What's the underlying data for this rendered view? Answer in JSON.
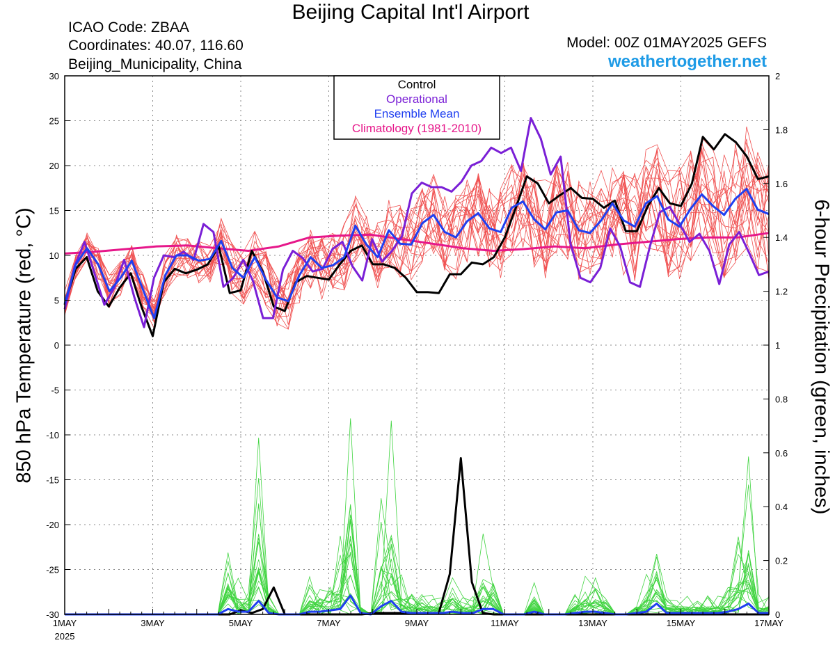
{
  "header": {
    "title": "Beijing Capital Int'l Airport",
    "icao": "ICAO Code: ZBAA",
    "coords": "Coordinates: 40.07, 116.60",
    "region": "Beijing_Municipality, China",
    "model": "Model: 00Z 01MAY2025 GEFS",
    "site": "weathertogether.net"
  },
  "colors": {
    "members": "#f05050",
    "precip_members": "#3fd43f",
    "control": "#000000",
    "operational": "#7a1fd6",
    "mean": "#1f3ff0",
    "climatology": "#e6178a"
  },
  "chart_data": {
    "type": "line",
    "title": "Beijing Capital Int'l Airport",
    "ylabel": "850 hPa Temperature (red, °C)",
    "y2label": "6-hour Precipitation (green, inches)",
    "ylim": [
      -30,
      30
    ],
    "y2lim": [
      0,
      2
    ],
    "xlim_days": [
      0,
      16
    ],
    "x_ticks": [
      {
        "day": 0,
        "label": "1MAY"
      },
      {
        "day": 2,
        "label": "3MAY"
      },
      {
        "day": 4,
        "label": "5MAY"
      },
      {
        "day": 6,
        "label": "7MAY"
      },
      {
        "day": 8,
        "label": "9MAY"
      },
      {
        "day": 10,
        "label": "11MAY"
      },
      {
        "day": 12,
        "label": "13MAY"
      },
      {
        "day": 14,
        "label": "15MAY"
      },
      {
        "day": 16,
        "label": "17MAY"
      }
    ],
    "x_year_label": "2025",
    "y_ticks": [
      30,
      25,
      20,
      15,
      10,
      5,
      0,
      -5,
      -10,
      -15,
      -20,
      -25,
      -30
    ],
    "y2_ticks": [
      "2",
      "1.8",
      "1.6",
      "1.4",
      "1.2",
      "1",
      "0.8",
      "0.6",
      "0.4",
      "0.2",
      "0"
    ],
    "grid": "dotted",
    "legend": {
      "position": "top-center",
      "items": [
        {
          "label": "Control",
          "color": "#000000"
        },
        {
          "label": "Operational",
          "color": "#7a1fd6"
        },
        {
          "label": "Ensemble Mean",
          "color": "#1f3ff0"
        },
        {
          "label": "Climatology (1981-2010)",
          "color": "#e6178a"
        }
      ]
    },
    "series": [
      {
        "name": "Control",
        "axis": "temp",
        "values": [
          4.5,
          8.5,
          9.8,
          6,
          4.3,
          6.4,
          8,
          4.2,
          1,
          7,
          8.5,
          8,
          8.4,
          9,
          11,
          5.8,
          6.1,
          10.5,
          8.2,
          4.3,
          3.8,
          7,
          7.7,
          7.5,
          7.3,
          9,
          10.5,
          11.1,
          9,
          9,
          8.6,
          7.5,
          5.9,
          5.9,
          5.8,
          7.9,
          7.9,
          9.2,
          9,
          9.8,
          12,
          15.3,
          18.8,
          18,
          15.8,
          16.7,
          17.5,
          16.4,
          16.3,
          15.3,
          16.1,
          12.7,
          12.7,
          15.5,
          17.5,
          15.8,
          15.5,
          18,
          23.2,
          21.8,
          23.5,
          22.6,
          21,
          18.5,
          18.8
        ]
      },
      {
        "name": "Operational",
        "axis": "temp",
        "values": [
          4,
          8.8,
          11.5,
          8,
          4.5,
          6.4,
          9.5,
          5.4,
          2,
          7.5,
          10,
          9.8,
          10.4,
          9.5,
          13.5,
          12.6,
          6.5,
          7.5,
          9.5,
          7.1,
          3,
          3,
          8.4,
          10.5,
          9.7,
          8.2,
          8.5,
          10.7,
          11.5,
          8.8,
          7.2,
          11.8,
          9.3,
          10.5,
          12.1,
          16.9,
          18.1,
          17.6,
          17.6,
          17.1,
          18.2,
          20,
          20.5,
          22,
          21.4,
          22,
          19.4,
          25.3,
          23,
          19,
          21,
          11.3,
          7.5,
          7,
          8.6,
          13,
          11,
          7,
          6.5,
          11,
          14.8,
          15.4,
          13.5,
          11.5,
          12.4,
          10.5,
          6.8,
          11.2,
          12.6,
          10.3,
          7.8,
          8.2
        ]
      },
      {
        "name": "Ensemble Mean",
        "axis": "temp",
        "values": [
          4.6,
          9,
          10.8,
          9,
          6,
          7.5,
          9.4,
          6.2,
          3,
          7.8,
          10,
          10,
          9.4,
          9.6,
          11.6,
          8.6,
          7.5,
          9.8,
          7.3,
          5.3,
          4.9,
          7.8,
          9.8,
          8.6,
          8.9,
          9.8,
          13.3,
          11.2,
          9.8,
          12.8,
          11.3,
          11.2,
          13.6,
          14.5,
          12.6,
          12,
          13.8,
          14.7,
          13,
          12.6,
          15.3,
          16,
          14,
          12.9,
          14.8,
          15,
          12.8,
          12.5,
          13.9,
          15.8,
          13.9,
          13.2,
          15.8,
          16.6,
          14,
          13.2,
          15.2,
          16.8,
          15.5,
          14.5,
          16.3,
          17.4,
          15.1,
          14.6
        ]
      },
      {
        "name": "Climatology (1981-2010)",
        "axis": "temp",
        "values": [
          10.2,
          10.4,
          10.7,
          11,
          11.1,
          10.8,
          10.5,
          11,
          12,
          12.2,
          12.3,
          11.8,
          11.3,
          10.8,
          10.5,
          10.7,
          11,
          10.8,
          11.2,
          11.5,
          11.8,
          12,
          12,
          12.5
        ]
      },
      {
        "name": "Control precip",
        "axis": "precip",
        "values": [
          0,
          0,
          0,
          0,
          0,
          0,
          0,
          0,
          0,
          0,
          0,
          0,
          0,
          0,
          0,
          0,
          0.015,
          0.005,
          0.02,
          0.1,
          0,
          0,
          0,
          0,
          0,
          0,
          0,
          0,
          0.005,
          0.005,
          0.005,
          0.005,
          0.005,
          0.005,
          0.005,
          0.15,
          0.58,
          0.12,
          0.005,
          0,
          0,
          0,
          0,
          0,
          0,
          0,
          0,
          0,
          0,
          0,
          0,
          0,
          0,
          0,
          0,
          0,
          0,
          0,
          0,
          0,
          0,
          0,
          0,
          0,
          0
        ]
      },
      {
        "name": "Ensemble Mean precip",
        "axis": "precip",
        "values": [
          0,
          0,
          0,
          0,
          0,
          0,
          0,
          0,
          0,
          0,
          0,
          0,
          0,
          0,
          0,
          0,
          0.02,
          0.01,
          0.01,
          0.05,
          0.005,
          0,
          0,
          0,
          0.01,
          0.01,
          0.015,
          0.02,
          0.07,
          0.005,
          0,
          0.03,
          0.05,
          0.01,
          0.005,
          0.005,
          0.005,
          0.005,
          0.01,
          0.005,
          0.005,
          0.02,
          0.02,
          0,
          0,
          0,
          0.01,
          0,
          0,
          0,
          0.005,
          0.01,
          0.01,
          0.005,
          0,
          0,
          0.005,
          0.01,
          0.04,
          0.005,
          0.005,
          0.005,
          0.005,
          0.005,
          0.005,
          0.01,
          0.02,
          0.04,
          0.005,
          0.005
        ]
      }
    ]
  }
}
